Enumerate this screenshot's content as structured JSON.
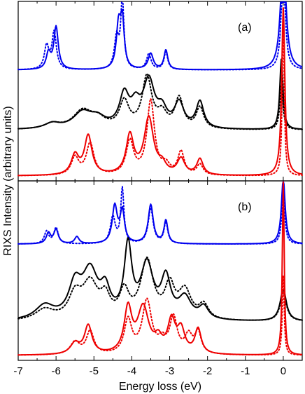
{
  "chart_data": {
    "type": "line",
    "ylabel": "RIXS Intensity (arbitrary units)",
    "xlabel": "Energy loss (eV)",
    "xlim": [
      -7,
      0.5
    ],
    "xticks": [
      -7,
      -6,
      -5,
      -4,
      -3,
      -2,
      -1,
      0
    ],
    "colors": {
      "blue": "#0000ee",
      "black": "#000000",
      "red": "#ee0000"
    },
    "panels": [
      {
        "label": "(a)",
        "ylim": [
          0,
          10
        ],
        "series": [
          {
            "color": "blue",
            "style": "solid",
            "baseline": 6.2,
            "peaks": [
              [
                -6.2,
                0.9,
                0.07
              ],
              [
                -6.0,
                2.4,
                0.07
              ],
              [
                -4.35,
                2.4,
                0.07
              ],
              [
                -4.25,
                2.6,
                0.06
              ],
              [
                -3.5,
                0.9,
                0.08
              ],
              [
                -3.1,
                1.1,
                0.06
              ],
              [
                0.0,
                7.0,
                0.08
              ]
            ]
          },
          {
            "color": "blue",
            "style": "dotted",
            "baseline": 6.2,
            "peaks": [
              [
                -6.25,
                1.3,
                0.07
              ],
              [
                -6.05,
                2.1,
                0.07
              ],
              [
                -4.4,
                1.8,
                0.07
              ],
              [
                -4.25,
                3.9,
                0.05
              ],
              [
                -3.55,
                0.9,
                0.07
              ],
              [
                -3.1,
                1.0,
                0.06
              ],
              [
                0.0,
                6.0,
                0.06
              ]
            ]
          },
          {
            "color": "black",
            "style": "solid",
            "baseline": 2.8,
            "peaks": [
              [
                -6.1,
                0.3,
                0.25
              ],
              [
                -5.3,
                0.9,
                0.3
              ],
              [
                -4.9,
                0.5,
                0.25
              ],
              [
                -4.2,
                1.8,
                0.15
              ],
              [
                -3.9,
                1.1,
                0.15
              ],
              [
                -3.55,
                2.6,
                0.18
              ],
              [
                -3.2,
                0.9,
                0.15
              ],
              [
                -2.75,
                1.4,
                0.15
              ],
              [
                -2.2,
                1.5,
                0.12
              ],
              [
                -0.05,
                4.0,
                0.05
              ]
            ]
          },
          {
            "color": "black",
            "style": "dotted",
            "baseline": 2.8,
            "peaks": [
              [
                -6.1,
                0.3,
                0.25
              ],
              [
                -5.3,
                1.0,
                0.3
              ],
              [
                -4.9,
                0.5,
                0.25
              ],
              [
                -4.2,
                1.5,
                0.15
              ],
              [
                -3.6,
                2.9,
                0.15
              ],
              [
                -3.2,
                0.8,
                0.15
              ],
              [
                -2.75,
                1.7,
                0.13
              ],
              [
                -2.2,
                1.2,
                0.12
              ],
              [
                -0.05,
                2.5,
                0.05
              ]
            ]
          },
          {
            "color": "red",
            "style": "solid",
            "baseline": 0.2,
            "peaks": [
              [
                -5.5,
                1.1,
                0.12
              ],
              [
                -5.15,
                2.2,
                0.12
              ],
              [
                -4.05,
                2.2,
                0.12
              ],
              [
                -3.55,
                3.2,
                0.15
              ],
              [
                -3.2,
                0.5,
                0.12
              ],
              [
                -2.7,
                0.9,
                0.12
              ],
              [
                -2.2,
                0.9,
                0.1
              ],
              [
                0.0,
                9.5,
                0.05
              ]
            ]
          },
          {
            "color": "red",
            "style": "dotted",
            "baseline": 0.2,
            "peaks": [
              [
                -5.5,
                1.0,
                0.12
              ],
              [
                -5.1,
                1.8,
                0.12
              ],
              [
                -4.05,
                1.9,
                0.12
              ],
              [
                -3.5,
                4.2,
                0.12
              ],
              [
                -3.1,
                0.5,
                0.12
              ],
              [
                -2.7,
                1.3,
                0.1
              ],
              [
                -2.2,
                0.6,
                0.1
              ],
              [
                0.0,
                9.5,
                0.03
              ]
            ]
          }
        ]
      },
      {
        "label": "(b)",
        "ylim": [
          0,
          10
        ],
        "series": [
          {
            "color": "blue",
            "style": "solid",
            "baseline": 6.5,
            "peaks": [
              [
                -6.2,
                0.6,
                0.07
              ],
              [
                -6.0,
                0.8,
                0.07
              ],
              [
                -5.45,
                0.4,
                0.07
              ],
              [
                -4.45,
                2.1,
                0.08
              ],
              [
                -4.25,
                1.8,
                0.07
              ],
              [
                -3.5,
                2.2,
                0.08
              ],
              [
                -3.1,
                1.3,
                0.06
              ],
              [
                0.0,
                3.7,
                0.06
              ]
            ]
          },
          {
            "color": "blue",
            "style": "dotted",
            "baseline": 6.5,
            "peaks": [
              [
                -6.25,
                0.7,
                0.07
              ],
              [
                -6.0,
                0.9,
                0.07
              ],
              [
                -4.5,
                1.5,
                0.08
              ],
              [
                -4.25,
                3.1,
                0.05
              ],
              [
                -3.5,
                2.0,
                0.08
              ],
              [
                -3.1,
                1.2,
                0.06
              ],
              [
                0.0,
                2.8,
                0.05
              ]
            ]
          },
          {
            "color": "black",
            "style": "solid",
            "baseline": 2.1,
            "peaks": [
              [
                -6.3,
                0.8,
                0.3
              ],
              [
                -5.5,
                1.8,
                0.2
              ],
              [
                -5.1,
                2.6,
                0.25
              ],
              [
                -4.7,
                1.4,
                0.15
              ],
              [
                -4.1,
                4.0,
                0.12
              ],
              [
                -3.6,
                3.0,
                0.2
              ],
              [
                -3.1,
                2.2,
                0.15
              ],
              [
                -2.6,
                1.2,
                0.2
              ],
              [
                -2.1,
                0.7,
                0.15
              ],
              [
                0.0,
                1.8,
                0.1
              ]
            ]
          },
          {
            "color": "black",
            "style": "dotted",
            "baseline": 2.1,
            "peaks": [
              [
                -6.3,
                0.6,
                0.3
              ],
              [
                -5.5,
                1.3,
                0.2
              ],
              [
                -5.1,
                2.0,
                0.25
              ],
              [
                -4.7,
                1.1,
                0.15
              ],
              [
                -4.2,
                1.5,
                0.15
              ],
              [
                -3.6,
                3.3,
                0.2
              ],
              [
                -3.0,
                1.8,
                0.15
              ],
              [
                -2.6,
                1.6,
                0.2
              ],
              [
                -2.1,
                0.8,
                0.15
              ],
              [
                0.0,
                1.6,
                0.1
              ]
            ]
          },
          {
            "color": "red",
            "style": "solid",
            "baseline": 0.2,
            "peaks": [
              [
                -5.5,
                0.6,
                0.15
              ],
              [
                -5.15,
                1.6,
                0.12
              ],
              [
                -4.1,
                2.5,
                0.12
              ],
              [
                -3.7,
                2.6,
                0.18
              ],
              [
                -3.3,
                0.7,
                0.12
              ],
              [
                -2.95,
                1.8,
                0.12
              ],
              [
                -2.7,
                1.3,
                0.12
              ],
              [
                -2.25,
                1.4,
                0.1
              ],
              [
                0.0,
                9.8,
                0.03
              ]
            ]
          },
          {
            "color": "red",
            "style": "dotted",
            "baseline": 0.2,
            "peaks": [
              [
                -5.5,
                0.7,
                0.15
              ],
              [
                -5.1,
                1.3,
                0.12
              ],
              [
                -4.1,
                1.9,
                0.12
              ],
              [
                -3.6,
                3.0,
                0.15
              ],
              [
                -3.2,
                0.6,
                0.12
              ],
              [
                -2.9,
                2.0,
                0.12
              ],
              [
                -2.5,
                1.0,
                0.12
              ],
              [
                -2.25,
                1.2,
                0.1
              ],
              [
                0.0,
                4.5,
                0.03
              ]
            ]
          }
        ]
      }
    ]
  }
}
